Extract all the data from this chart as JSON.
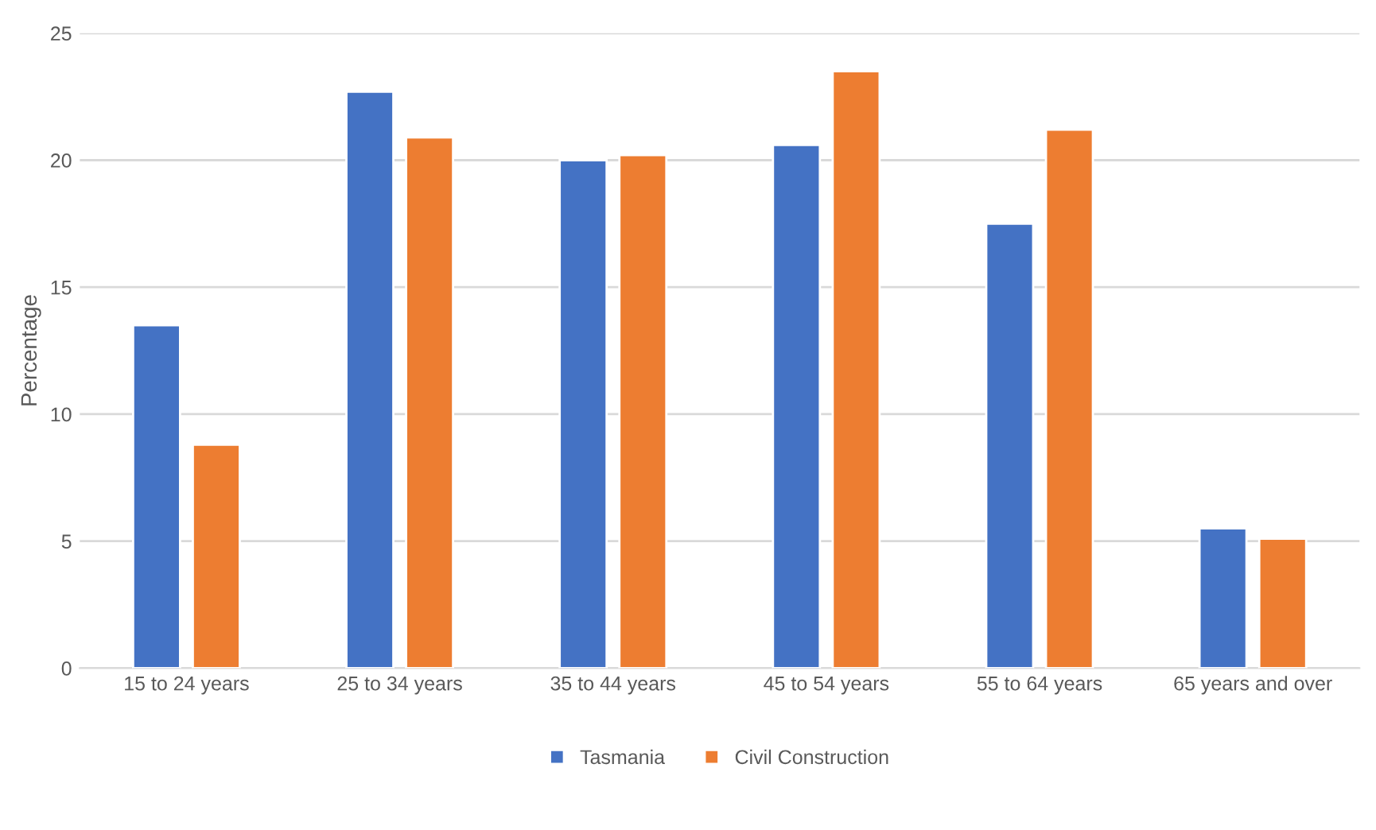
{
  "chart_data": {
    "type": "bar",
    "ylabel": "Percentage",
    "categories": [
      "15 to 24 years",
      "25 to 34 years",
      "35 to 44 years",
      "45 to 54 years",
      "55 to 64 years",
      "65 years and over"
    ],
    "series": [
      {
        "name": "Tasmania",
        "color": "#4472c4",
        "values": [
          13.5,
          22.7,
          20.0,
          20.6,
          17.5,
          5.5
        ]
      },
      {
        "name": "Civil Construction",
        "color": "#ed7d31",
        "values": [
          8.8,
          20.9,
          20.2,
          23.5,
          21.2,
          5.1
        ]
      }
    ],
    "ylim": [
      0,
      25
    ],
    "yticks": [
      0,
      5,
      10,
      15,
      20,
      25
    ],
    "grid": "y",
    "legend": "bottom"
  }
}
